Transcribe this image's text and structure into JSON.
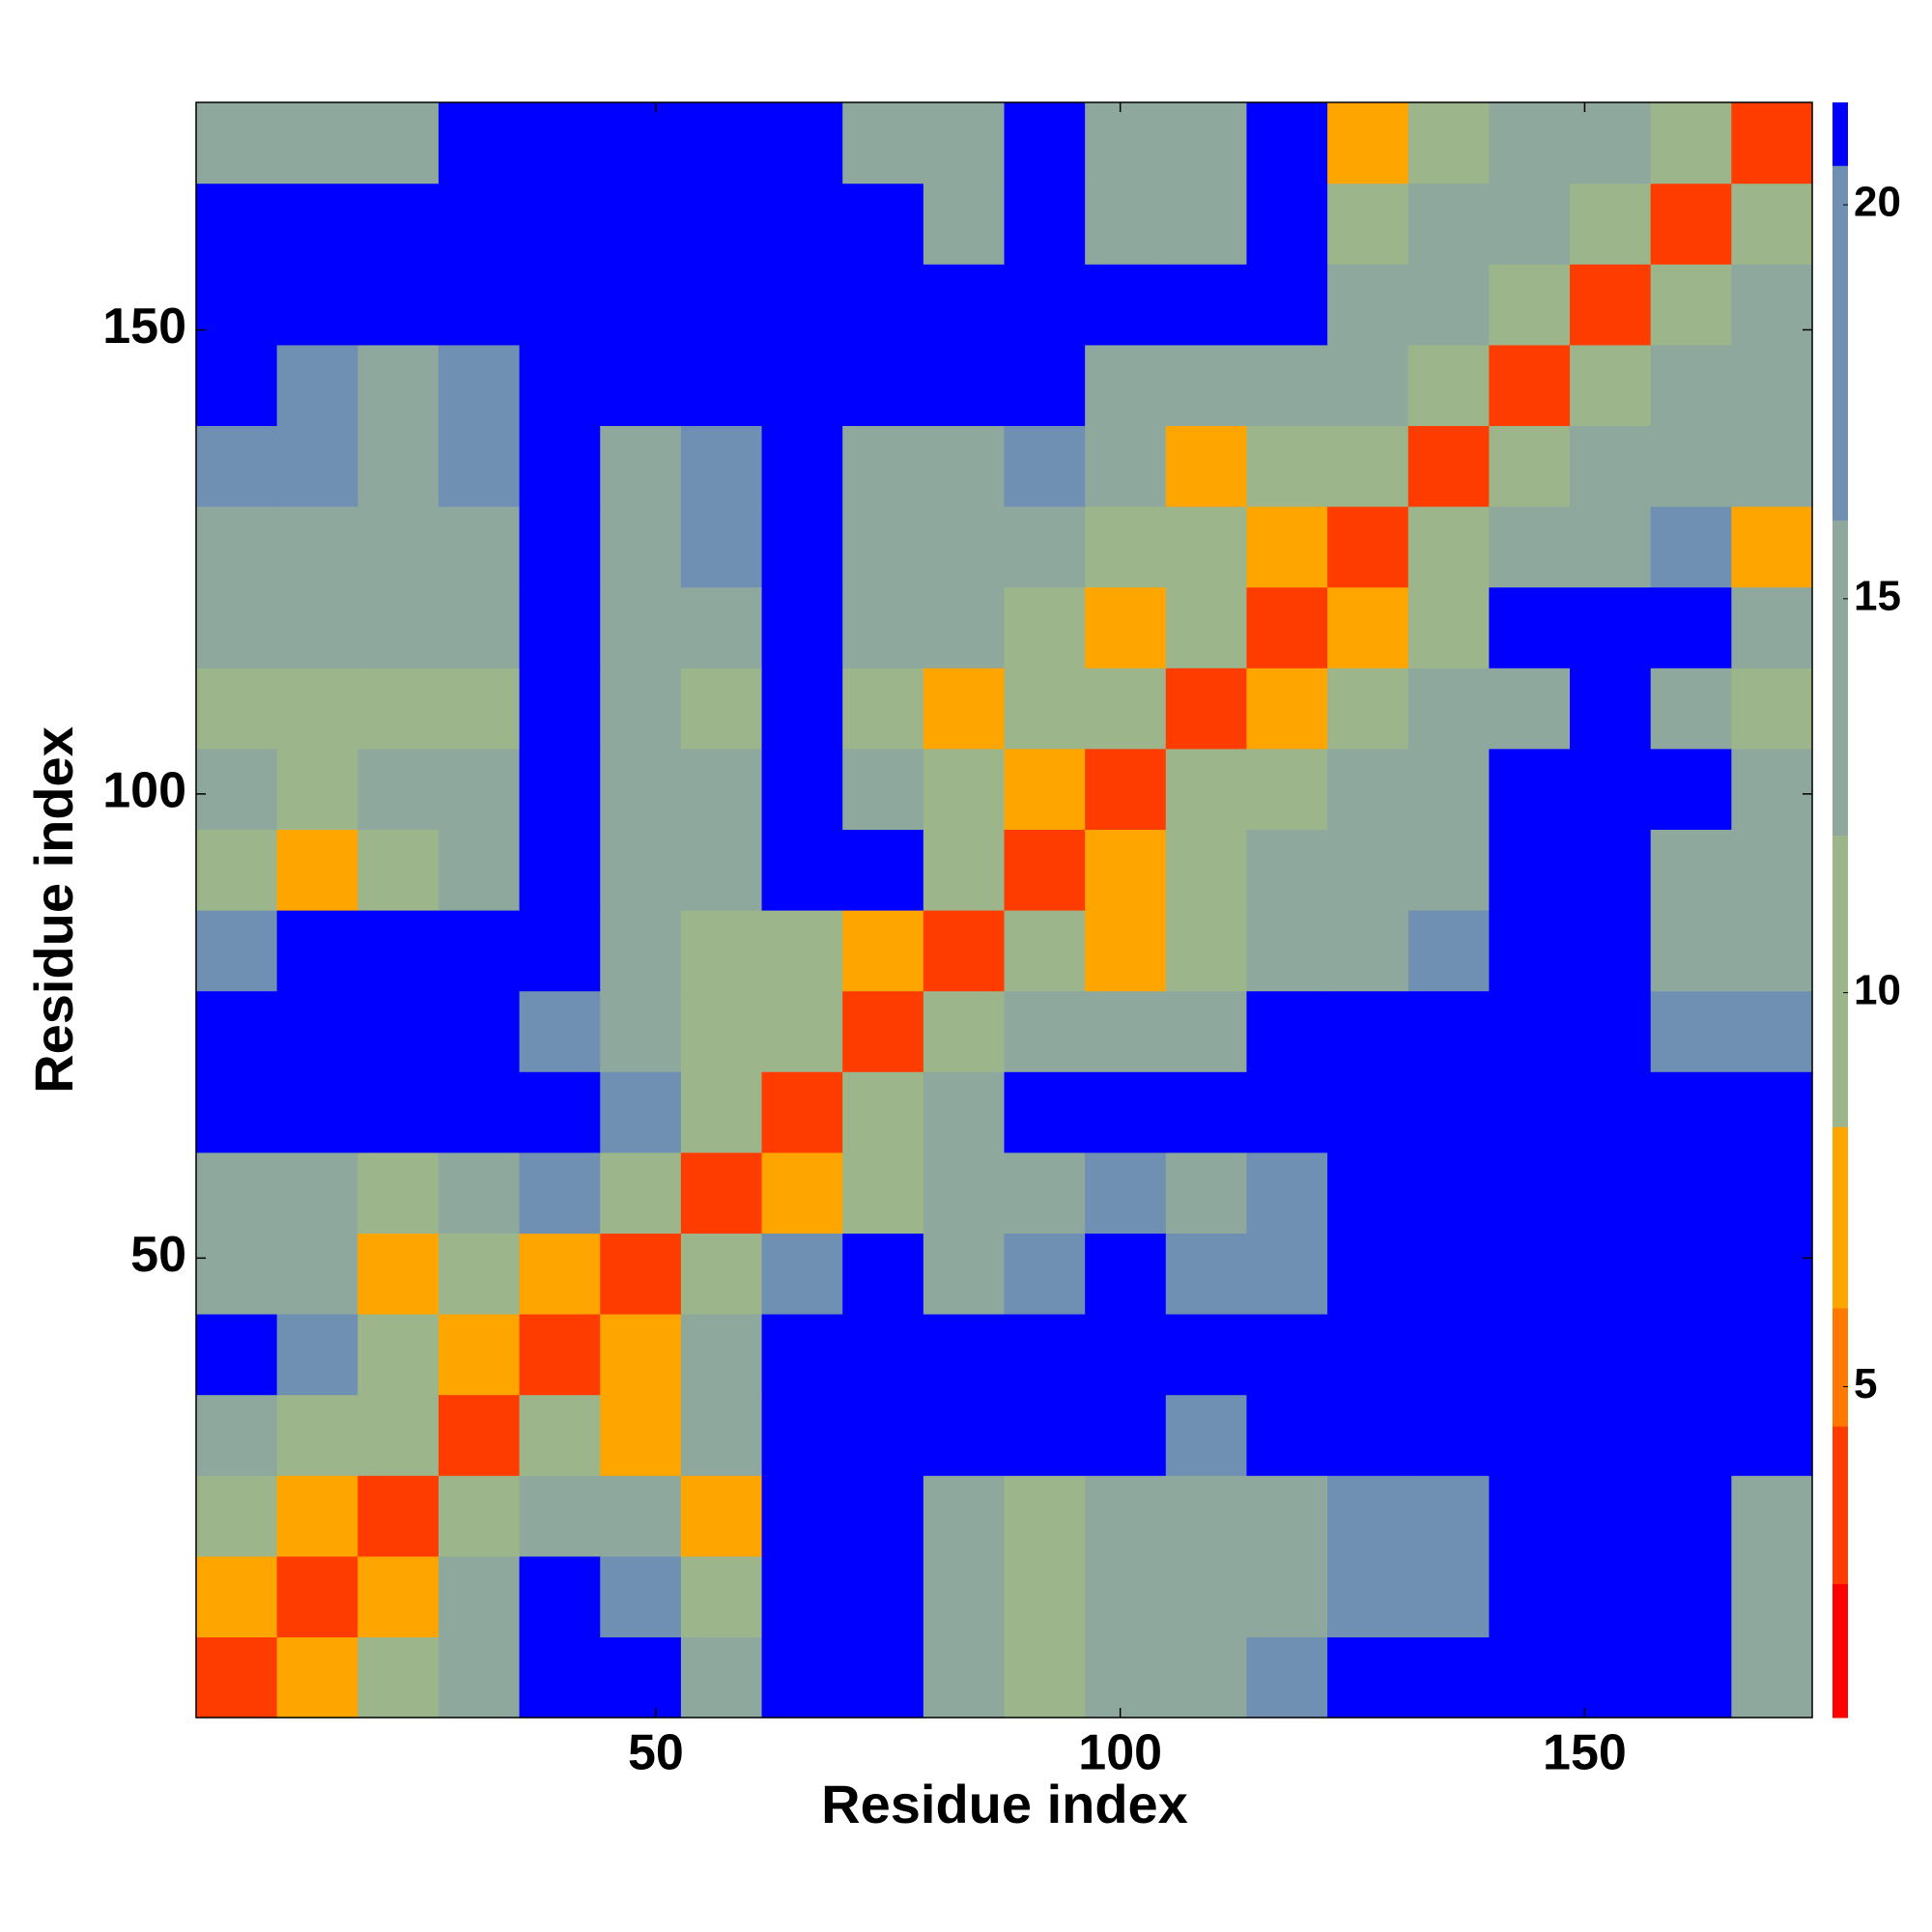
{
  "chart_data": {
    "type": "heatmap",
    "xlabel": "Residue index",
    "ylabel": "Residue index",
    "xlim": [
      0.5,
      174.5
    ],
    "ylim": [
      0.5,
      174.5
    ],
    "xticks": [
      50,
      100,
      150
    ],
    "yticks": [
      50,
      100,
      150
    ],
    "xbins": [
      0.5,
      9.2,
      17.9,
      26.6,
      35.3,
      44,
      52.7,
      61.4,
      70.1,
      78.8,
      87.5,
      96.2,
      104.9,
      113.6,
      122.3,
      131,
      139.7,
      148.4,
      157.1,
      165.8,
      174.5
    ],
    "ybins": [
      0.5,
      9.2,
      17.9,
      26.6,
      35.3,
      44,
      52.7,
      61.4,
      70.1,
      78.8,
      87.5,
      96.2,
      104.9,
      113.6,
      122.3,
      131,
      139.7,
      148.4,
      157.1,
      165.8,
      174.5
    ],
    "z": [
      [
        3,
        8,
        12,
        16,
        21,
        21,
        15,
        21,
        21,
        14,
        10,
        14,
        15,
        17,
        21,
        21,
        21,
        21,
        21,
        16
      ],
      [
        8,
        3,
        8,
        13,
        21,
        17,
        12,
        21,
        21,
        14,
        9,
        13,
        14,
        16,
        17,
        19,
        21,
        21,
        21,
        15
      ],
      [
        11,
        8,
        3,
        9,
        16,
        14,
        7,
        21,
        21,
        15,
        12,
        13,
        14,
        15,
        17,
        19,
        21,
        21,
        21,
        16
      ],
      [
        13,
        12,
        9,
        3,
        9,
        7,
        13,
        21,
        21,
        21,
        21,
        21,
        19,
        21,
        21,
        21,
        21,
        21,
        21,
        21
      ],
      [
        21,
        17,
        12,
        8,
        3,
        8,
        16,
        21,
        21,
        21,
        21,
        21,
        21,
        21,
        21,
        21,
        21,
        21,
        21,
        21
      ],
      [
        16,
        14,
        8,
        10,
        7,
        3,
        9,
        17,
        21,
        16,
        19,
        21,
        17,
        17,
        21,
        21,
        21,
        21,
        21,
        21
      ],
      [
        15,
        14,
        12,
        15,
        17,
        9,
        3,
        8,
        12,
        13,
        16,
        17,
        16,
        17,
        21,
        21,
        21,
        21,
        21,
        21
      ],
      [
        21,
        21,
        21,
        21,
        21,
        17,
        9,
        3,
        9,
        16,
        21,
        21,
        21,
        21,
        21,
        21,
        21,
        21,
        21,
        21
      ],
      [
        21,
        21,
        21,
        21,
        19,
        15,
        12,
        9,
        3,
        9,
        15,
        14,
        15,
        21,
        21,
        21,
        21,
        21,
        17,
        17
      ],
      [
        17,
        21,
        21,
        21,
        21,
        14,
        12,
        12,
        8,
        3,
        9,
        8,
        9,
        14,
        14,
        17,
        21,
        21,
        16,
        16
      ],
      [
        10,
        8,
        12,
        13,
        21,
        14,
        15,
        21,
        21,
        12,
        3,
        7,
        10,
        14,
        14,
        16,
        21,
        21,
        16,
        15
      ],
      [
        13,
        12,
        14,
        15,
        21,
        15,
        16,
        21,
        15,
        10,
        7,
        3,
        9,
        12,
        13,
        15,
        21,
        21,
        21,
        16
      ],
      [
        12,
        12,
        10,
        12,
        21,
        14,
        12,
        21,
        12,
        8,
        12,
        9,
        3,
        8,
        11,
        13,
        16,
        21,
        16,
        12
      ],
      [
        15,
        13,
        13,
        15,
        21,
        14,
        13,
        21,
        13,
        13,
        12,
        8,
        9,
        3,
        8,
        10,
        21,
        21,
        21,
        16
      ],
      [
        16,
        16,
        14,
        16,
        21,
        14,
        17,
        21,
        14,
        14,
        15,
        12,
        9,
        8,
        3,
        10,
        13,
        16,
        17,
        7
      ],
      [
        19,
        17,
        16,
        19,
        21,
        16,
        19,
        21,
        15,
        15,
        17,
        13,
        8,
        12,
        9,
        3,
        10,
        14,
        15,
        14
      ],
      [
        21,
        18,
        16,
        18,
        21,
        21,
        21,
        21,
        21,
        21,
        21,
        16,
        16,
        14,
        13,
        10,
        3,
        9,
        13,
        16
      ],
      [
        21,
        21,
        21,
        21,
        21,
        21,
        21,
        21,
        21,
        21,
        21,
        21,
        21,
        21,
        16,
        14,
        9,
        3,
        10,
        15
      ],
      [
        21,
        21,
        21,
        21,
        21,
        21,
        21,
        21,
        21,
        16,
        21,
        16,
        14,
        21,
        11,
        14,
        13,
        10,
        3,
        9
      ],
      [
        14,
        13,
        16,
        21,
        21,
        21,
        21,
        21,
        15,
        14,
        21,
        16,
        14,
        21,
        7,
        12,
        14,
        13,
        9,
        3
      ]
    ],
    "clim": [
      0.8,
      21.3
    ],
    "cticks": [
      5,
      10,
      15,
      20
    ],
    "colorscale": [
      [
        2.5,
        "#ff0000"
      ],
      [
        4.5,
        "#ff3c00"
      ],
      [
        6,
        "#ff7800"
      ],
      [
        8.3,
        "#ffa500"
      ],
      [
        12,
        "#9db58a"
      ],
      [
        16,
        "#8ea89d"
      ],
      [
        20.5,
        "#6f8fb3"
      ],
      [
        21.3,
        "#0000ff"
      ]
    ]
  }
}
